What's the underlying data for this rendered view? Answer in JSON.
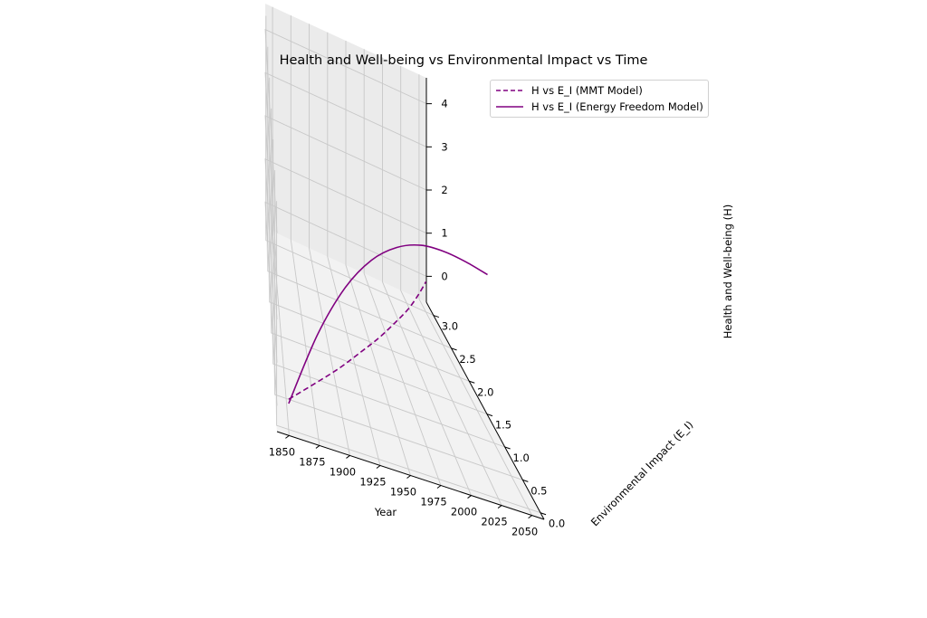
{
  "chart_data": {
    "type": "line3d",
    "title": "Health and Well-being vs Environmental Impact vs Time",
    "xlabel": "Year",
    "ylabel": "Environmental Impact (E_I)",
    "zlabel": "Health and Well-being (H)",
    "xlim": [
      1840,
      2060
    ],
    "ylim": [
      -0.1,
      3.2
    ],
    "zlim": [
      -0.6,
      4.6
    ],
    "x_ticks": [
      "1850",
      "1875",
      "1900",
      "1925",
      "1950",
      "1975",
      "2000",
      "2025",
      "2050"
    ],
    "y_ticks": [
      "0.0",
      "0.5",
      "1.0",
      "1.5",
      "2.0",
      "2.5",
      "3.0"
    ],
    "z_ticks": [
      "0",
      "1",
      "2",
      "3",
      "4"
    ],
    "grid": true,
    "legend_position": "top-right",
    "series": [
      {
        "name": "H vs E_I (MMT Model)",
        "style": "dashed",
        "color": "#800080",
        "points": [
          [
            1850,
            0.0,
            0.1
          ],
          [
            1875,
            0.38,
            0.15
          ],
          [
            1900,
            0.75,
            0.19
          ],
          [
            1925,
            1.13,
            0.22
          ],
          [
            1950,
            1.5,
            0.23
          ],
          [
            1975,
            1.88,
            0.22
          ],
          [
            2000,
            2.25,
            0.19
          ],
          [
            2025,
            2.63,
            0.15
          ],
          [
            2050,
            3.0,
            0.1
          ]
        ]
      },
      {
        "name": "H vs E_I (Energy Freedom Model)",
        "style": "solid",
        "color": "#800080",
        "points": [
          [
            1850,
            0.0,
            0.0
          ],
          [
            1875,
            0.15,
            1.6
          ],
          [
            1900,
            0.3,
            2.7
          ],
          [
            1925,
            0.45,
            3.35
          ],
          [
            1950,
            0.6,
            3.65
          ],
          [
            1975,
            0.75,
            3.7
          ],
          [
            2000,
            0.9,
            3.55
          ],
          [
            2025,
            1.05,
            3.3
          ],
          [
            2050,
            1.2,
            3.0
          ]
        ]
      }
    ]
  }
}
